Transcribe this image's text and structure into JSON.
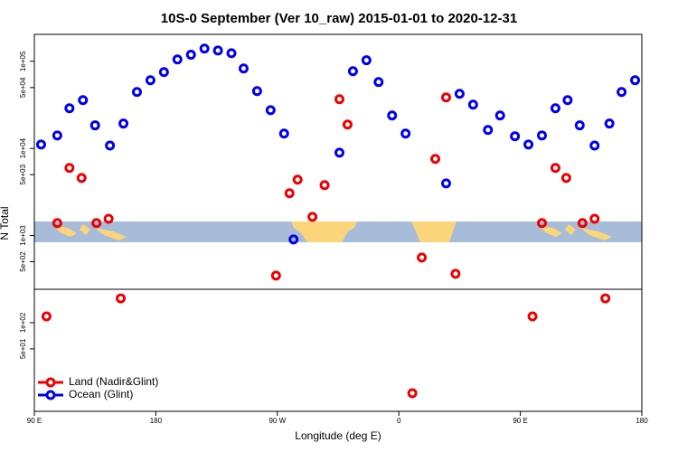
{
  "chart_data": {
    "type": "scatter",
    "title": "10S-0 September (Ver 10_raw)   2015-01-01 to 2020-12-31",
    "x_label": "Longitude (deg E)",
    "y_label": "N Total",
    "log_y": true,
    "grid": false,
    "legend": "lower left",
    "xlim": [
      90,
      540
    ],
    "xticks": [
      {
        "value": 90,
        "label": "90 E"
      },
      {
        "value": 180,
        "label": "180"
      },
      {
        "value": 270,
        "label": "90 W"
      },
      {
        "value": 360,
        "label": "0"
      },
      {
        "value": 450,
        "label": "90 E"
      },
      {
        "value": 540,
        "label": "180"
      }
    ],
    "ylim": [
      9.6,
      204000
    ],
    "yticks": [
      {
        "value": 50,
        "label": "5e+01"
      },
      {
        "value": 100,
        "label": "1e+02"
      },
      {
        "value": 500,
        "label": "5e+02"
      },
      {
        "value": 1000,
        "label": "1e+03"
      },
      {
        "value": 5000,
        "label": "5e+03"
      },
      {
        "value": 10000,
        "label": "1e+04"
      },
      {
        "value": 50000,
        "label": "5e+04"
      },
      {
        "value": 100000,
        "label": "1e+05"
      }
    ],
    "series": [
      {
        "name": "Land (Nadir&Glint)",
        "color": "#ee0000",
        "x": [
          99,
          107,
          116,
          125,
          136,
          145,
          154,
          269,
          279,
          285,
          296,
          305,
          316,
          322,
          370,
          377,
          387,
          395,
          402,
          459,
          466,
          476,
          484,
          496,
          505,
          513
        ],
        "values": [
          118,
          1390,
          5970,
          4580,
          1390,
          1560,
          190,
          347,
          3060,
          4380,
          1640,
          3790,
          36700,
          18800,
          15.5,
          560,
          7590,
          38500,
          364,
          118,
          1390,
          5970,
          4580,
          1390,
          1560,
          190
        ]
      },
      {
        "name": "Ocean (Glint)",
        "color": "#0000ee",
        "x": [
          95,
          107,
          116,
          126,
          135,
          146,
          156,
          166,
          176,
          186,
          196,
          206,
          216,
          226,
          236,
          245,
          255,
          265,
          275,
          282,
          316,
          326,
          336,
          345,
          355,
          365,
          395,
          405,
          415,
          426,
          435,
          446,
          456,
          466,
          476,
          485,
          494,
          505,
          516,
          525,
          535
        ],
        "values": [
          11100,
          14100,
          28900,
          35900,
          18400,
          10800,
          19300,
          44500,
          60700,
          75200,
          105000,
          119000,
          140000,
          133000,
          124000,
          82800,
          45500,
          27500,
          14800,
          902,
          8950,
          77100,
          103000,
          57800,
          23900,
          14800,
          3970,
          42400,
          31800,
          16300,
          23900,
          13800,
          11100,
          14100,
          28900,
          35900,
          18400,
          10800,
          19300,
          44500,
          60700
        ]
      }
    ]
  }
}
